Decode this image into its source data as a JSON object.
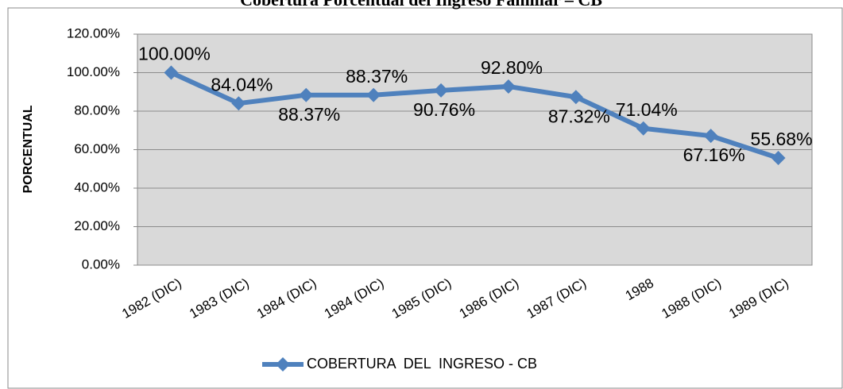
{
  "chart_data": {
    "type": "line",
    "title": "Cobertura Porcentual del Ingreso Familiar – CB",
    "y_label": "PORCENTUAL",
    "categories": [
      "1982 (DIC)",
      "1983 (DIC)",
      "1984 (DIC)",
      "1984 (DIC)",
      "1985 (DIC)",
      "1986 (DIC)",
      "1987 (DIC)",
      "1988",
      "1988 (DIC)",
      "1989 (DIC)"
    ],
    "series": [
      {
        "name": "COBERTURA  DEL  INGRESO - CB",
        "color": "#4f81bd",
        "values": [
          100,
          84.04,
          88.37,
          88.37,
          90.76,
          92.8,
          87.32,
          71.04,
          67.16,
          55.68
        ],
        "value_labels": [
          "100.00%",
          "84.04%",
          "88.37%",
          "88.37%",
          "90.76%",
          "92.80%",
          "87.32%",
          "71.04%",
          "67.16%",
          "55.68%"
        ]
      }
    ],
    "ylim": [
      0,
      120
    ],
    "yticks": [
      {
        "value": 0,
        "label": "0.00%"
      },
      {
        "value": 20,
        "label": "20.00%"
      },
      {
        "value": 40,
        "label": "40.00%"
      },
      {
        "value": 60,
        "label": "60.00%"
      },
      {
        "value": 80,
        "label": "80.00%"
      },
      {
        "value": 100,
        "label": "100.00%"
      },
      {
        "value": 120,
        "label": "120.00%"
      }
    ],
    "grid": true,
    "legend": "bottom"
  }
}
